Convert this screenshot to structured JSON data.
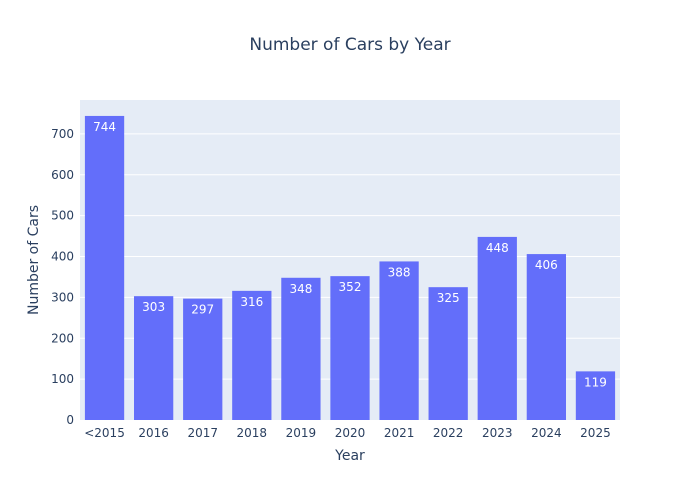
{
  "chart_data": {
    "type": "bar",
    "title": "Number of Cars by Year",
    "xlabel": "Year",
    "ylabel": "Number of Cars",
    "categories": [
      "<2015",
      "2016",
      "2017",
      "2018",
      "2019",
      "2020",
      "2021",
      "2022",
      "2023",
      "2024",
      "2025"
    ],
    "values": [
      744,
      303,
      297,
      316,
      348,
      352,
      388,
      325,
      448,
      406,
      119
    ],
    "ylim": [
      0,
      783
    ],
    "yticks": [
      0,
      100,
      200,
      300,
      400,
      500,
      600,
      700
    ],
    "grid": true,
    "data_labels": "inside-top"
  },
  "colors": {
    "bar": "#636efa",
    "plot_bg": "#e5ecf6",
    "grid": "#ffffff",
    "text": "#2a3f5f",
    "data_label": "#ffffff"
  }
}
